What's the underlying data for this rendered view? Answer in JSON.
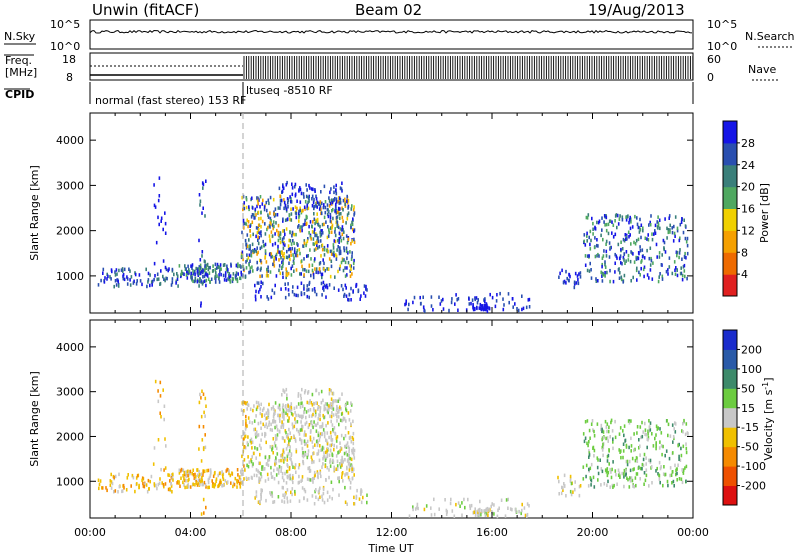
{
  "header": {
    "station": "Unwin (fitACF)",
    "beam": "Beam 02",
    "date": "19/Aug/2013"
  },
  "strip": {
    "nsky_label": "N.Sky",
    "nsearch_label": "N.Search",
    "freq_label_line1": "Freq.",
    "freq_label_line2": "[MHz]",
    "nave_label": "Nave",
    "cpid_label": "CPID",
    "left_ticks_top": [
      "10^5",
      "10^0"
    ],
    "right_ticks_top": [
      "10^5",
      "10^0"
    ],
    "left_ticks_freq": [
      "18",
      "8"
    ],
    "right_ticks_nave": [
      "60",
      "0"
    ],
    "cpid_text_1": "normal (fast stereo) 153 RF",
    "cpid_text_2": "ltuseq -8510 RF"
  },
  "chart_data": [
    {
      "type": "heatmap",
      "name": "power",
      "ylabel": "Slant Range [km]",
      "xlabel": "Time UT",
      "x_ticks": [
        "00:00",
        "04:00",
        "08:00",
        "12:00",
        "16:00",
        "20:00",
        "00:00"
      ],
      "x_range_hours": [
        0,
        24
      ],
      "y_range_km": [
        180,
        4600
      ],
      "y_ticks": [
        1000,
        2000,
        3000,
        4000
      ],
      "colorbar": {
        "label": "Power [dB]",
        "ticks": [
          "4",
          "8",
          "12",
          "16",
          "20",
          "24",
          "28"
        ],
        "colors": [
          "#1515e6",
          "#2a4fb0",
          "#3a7f7a",
          "#4fa860",
          "#f0d000",
          "#f5a000",
          "#ee6a00",
          "#e02020"
        ]
      }
    },
    {
      "type": "heatmap",
      "name": "velocity",
      "ylabel": "Slant Range [km]",
      "xlabel": "Time UT",
      "x_ticks": [
        "00:00",
        "04:00",
        "08:00",
        "12:00",
        "16:00",
        "20:00",
        "00:00"
      ],
      "x_range_hours": [
        0,
        24
      ],
      "y_range_km": [
        180,
        4600
      ],
      "y_ticks": [
        1000,
        2000,
        3000,
        4000
      ],
      "colorbar": {
        "label": "Velocity [m s",
        "label_sup": "-1",
        "label_end": "]",
        "ticks": [
          "200",
          "100",
          "50",
          "15",
          "-15",
          "-50",
          "-100",
          "-200"
        ],
        "colors": [
          "#1a2ccc",
          "#2a5aa8",
          "#3d8a6a",
          "#6ccc40",
          "#c8c8c8",
          "#f0c000",
          "#f58a00",
          "#ee5000",
          "#dd1010"
        ]
      }
    }
  ],
  "footer": {
    "xlabel": "Time UT"
  }
}
